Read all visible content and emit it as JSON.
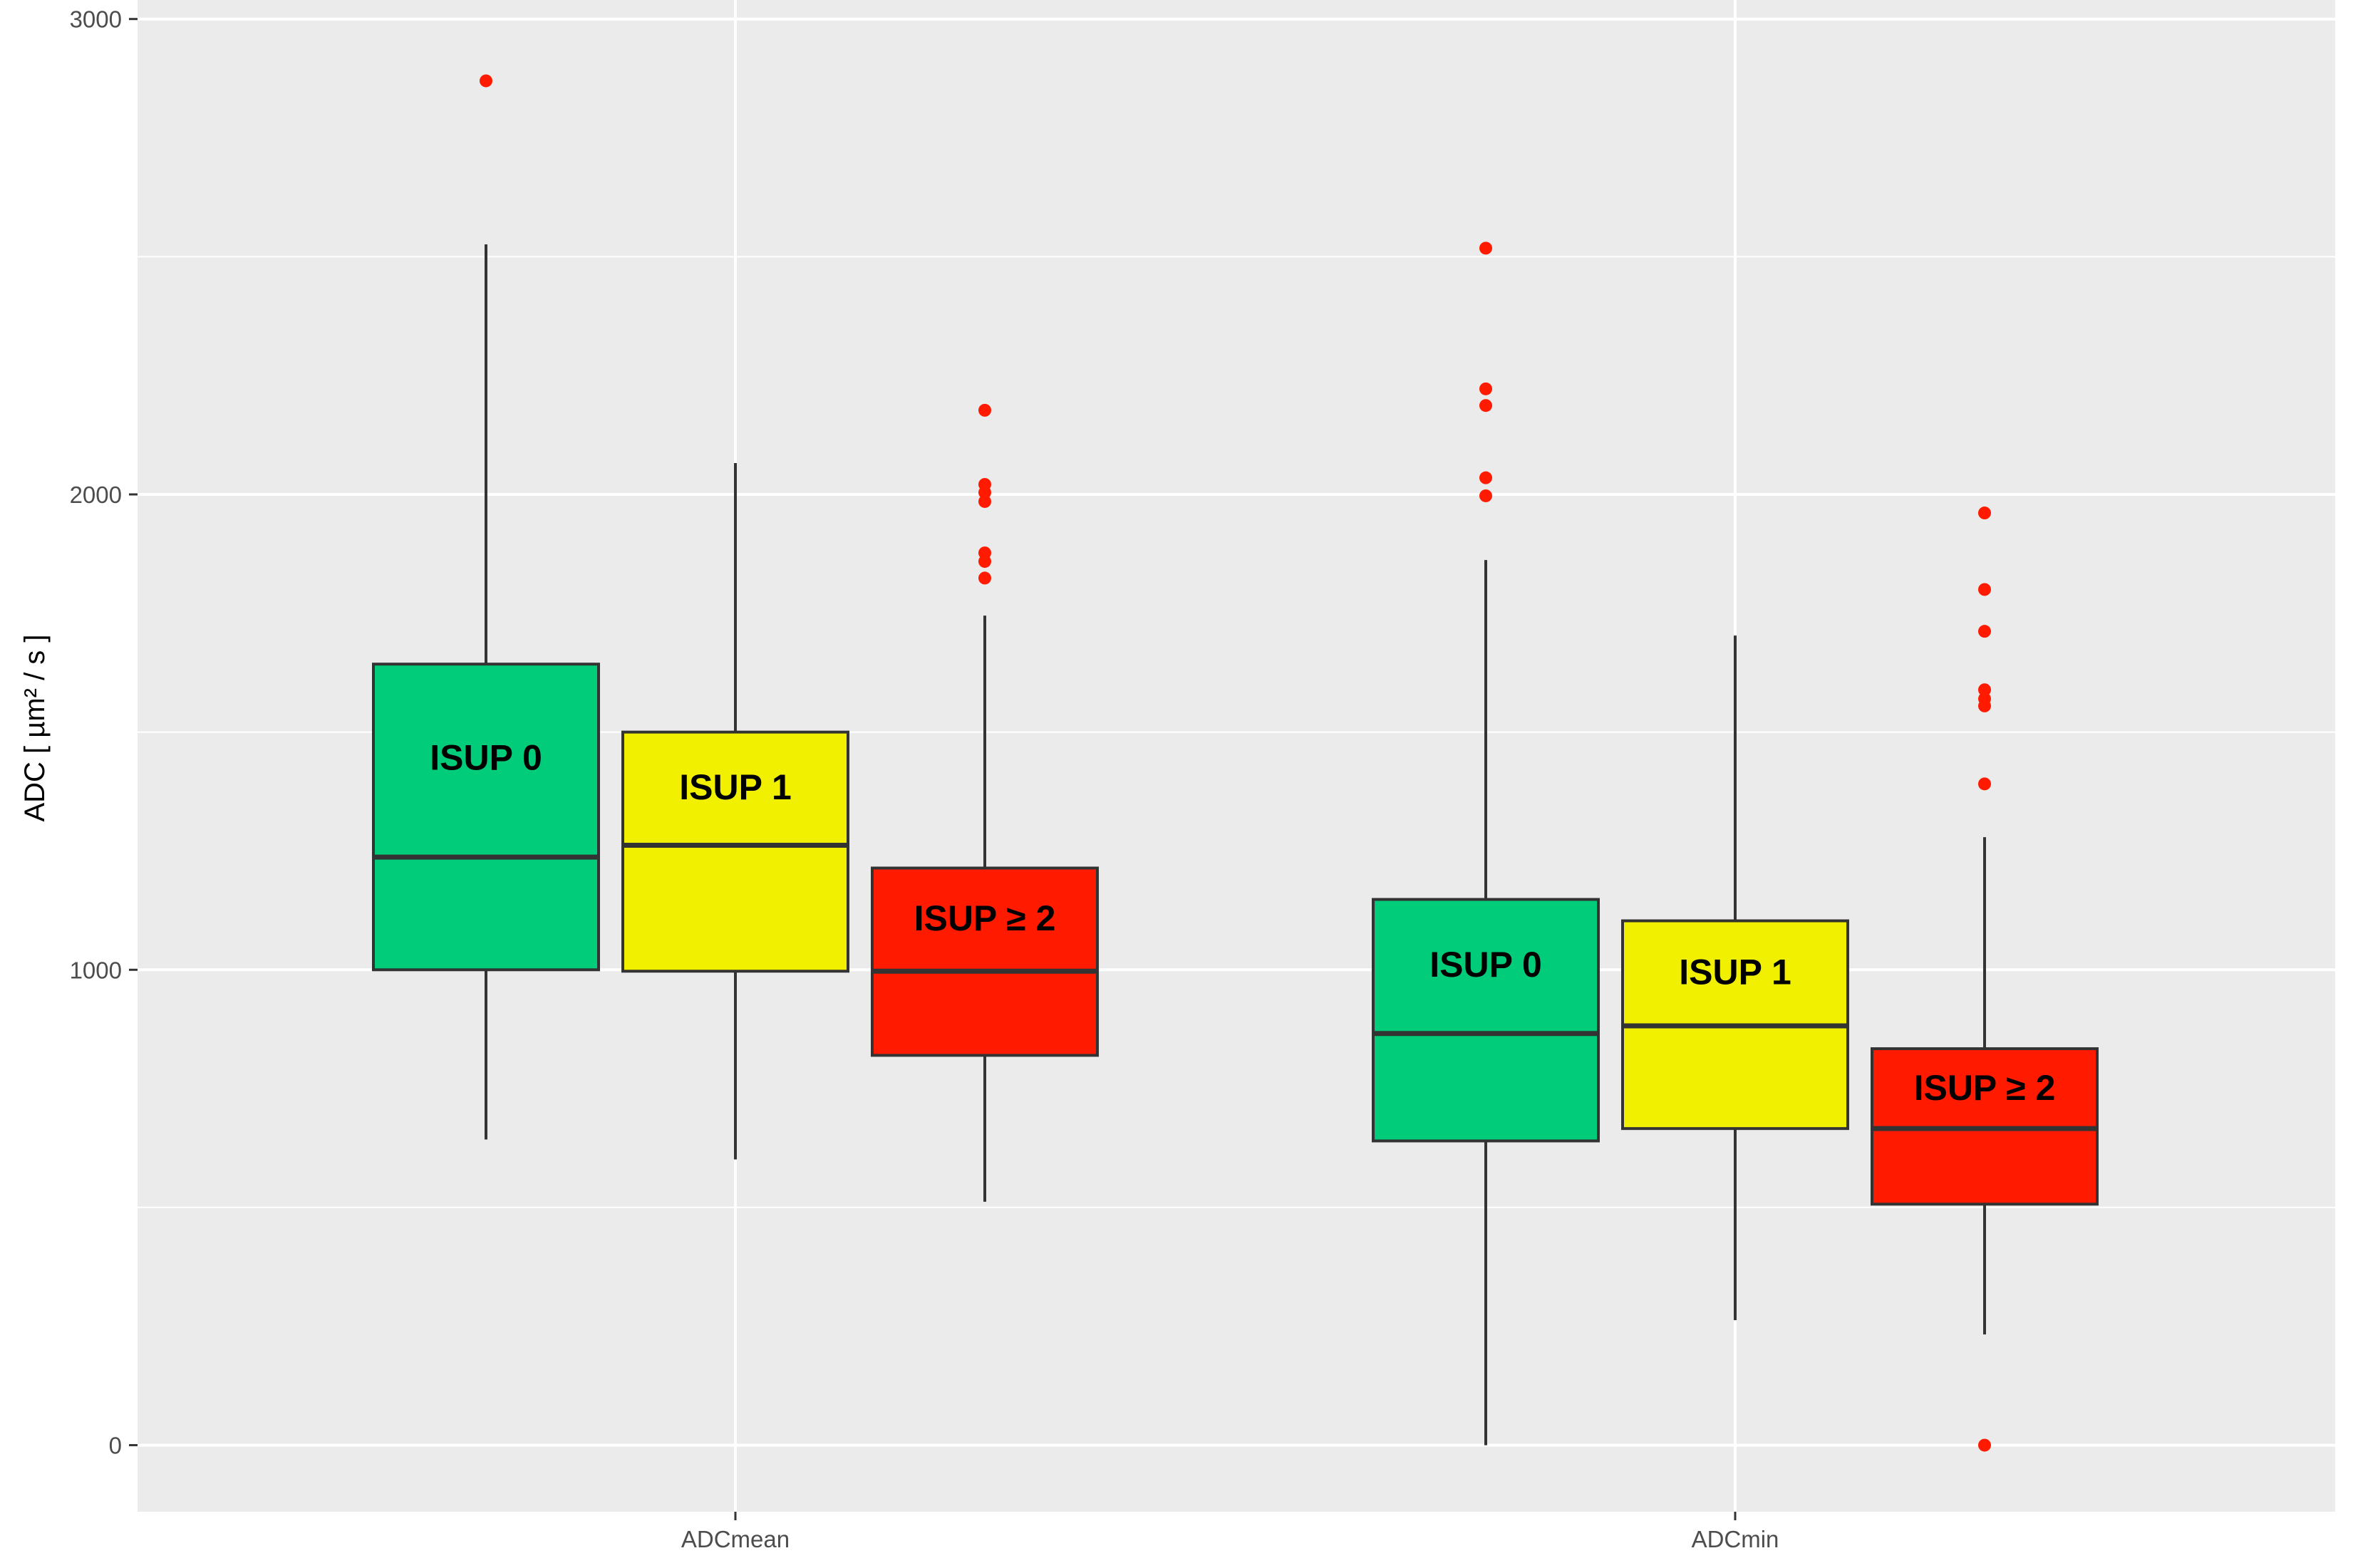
{
  "chart_data": {
    "type": "box",
    "ylabel": "ADC [ µm² / s ]",
    "ylim": [
      -140,
      3040
    ],
    "y_ticks": [
      0,
      1000,
      2000,
      3000
    ],
    "y_tick_labels": [
      "0",
      "1000",
      "2000",
      "3000"
    ],
    "y_minor_ticks": [
      500,
      1500,
      2500
    ],
    "grid": true,
    "categories": [
      "ADCmean",
      "ADCmin"
    ],
    "series": [
      {
        "name": "ISUP 0",
        "color": "#00CC7A",
        "boxes": [
          {
            "category": "ADCmean",
            "whisker_low": 643,
            "q1": 1000,
            "median": 1237,
            "q3": 1643,
            "whisker_high": 2526,
            "outliers": [
              2870
            ]
          },
          {
            "category": "ADCmin",
            "whisker_low": 0,
            "q1": 640,
            "median": 866,
            "q3": 1148,
            "whisker_high": 1862,
            "outliers": [
              2518,
              2222,
              2187,
              2035,
              1997
            ]
          }
        ]
      },
      {
        "name": "ISUP 1",
        "color": "#F0F000",
        "boxes": [
          {
            "category": "ADCmean",
            "whisker_low": 601,
            "q1": 997,
            "median": 1262,
            "q3": 1500,
            "whisker_high": 2066,
            "outliers": []
          },
          {
            "category": "ADCmin",
            "whisker_low": 263,
            "q1": 666,
            "median": 882,
            "q3": 1103,
            "whisker_high": 1703,
            "outliers": []
          }
        ]
      },
      {
        "name": "ISUP ≥ 2",
        "color": "#FF1A00",
        "boxes": [
          {
            "category": "ADCmean",
            "whisker_low": 512,
            "q1": 820,
            "median": 997,
            "q3": 1214,
            "whisker_high": 1745,
            "outliers": [
              2177,
              2021,
              2004,
              1985,
              1877,
              1859,
              1824
            ]
          },
          {
            "category": "ADCmin",
            "whisker_low": 233,
            "q1": 507,
            "median": 666,
            "q3": 834,
            "whisker_high": 1279,
            "outliers": [
              1961,
              1800,
              1712,
              1589,
              1570,
              1555,
              1391,
              0
            ]
          }
        ]
      }
    ],
    "outlier_color": "#FF1A00",
    "box_labels": [
      "ISUP 0",
      "ISUP 1",
      "ISUP ≥ 2"
    ]
  }
}
